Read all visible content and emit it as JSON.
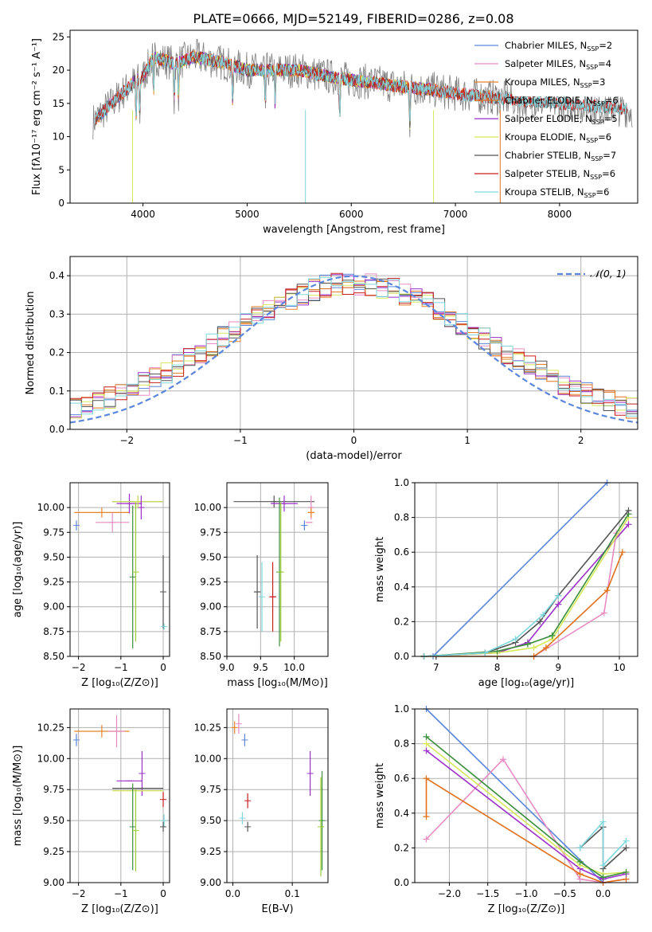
{
  "figure_title": "PLATE=0666, MJD=52149, FIBERID=0286, z=0.08",
  "colors": {
    "Chabrier MILES": "#5b86db",
    "Salpeter MILES": "#e88bc3",
    "Kroupa MILES": "#e8842a",
    "Chabrier ELODIE": "#e0701a",
    "Salpeter ELODIE": "#9b2fc9",
    "Kroupa ELODIE": "#d6e85a",
    "Chabrier STELIB": "#555555",
    "Salpeter STELIB": "#c81e1e",
    "Kroupa STELIB": "#7fd7dd",
    "gaussian": "#5b86db",
    "green_extra": "#3b8e3b",
    "olive_extra": "#9acd32",
    "grid": "#b0b0b0"
  },
  "chart_data": [
    {
      "type": "line",
      "title": "PLATE=0666, MJD=52149, FIBERID=0286, z=0.08",
      "xlabel": "wavelength [Angstrom, rest frame]",
      "ylabel": "Flux [fλ10⁻¹⁷ erg cm⁻² s⁻¹ A⁻¹]",
      "xlim": [
        3300,
        8750
      ],
      "ylim": [
        0,
        26
      ],
      "xticks": [
        "4000",
        "5000",
        "6000",
        "7000",
        "8000"
      ],
      "yticks": [
        "0",
        "5",
        "10",
        "15",
        "20",
        "25"
      ],
      "grid": false,
      "legend_position": "upper right",
      "legend": [
        {
          "name": "Chabrier MILES",
          "nssp": "2"
        },
        {
          "name": "Salpeter MILES",
          "nssp": "4"
        },
        {
          "name": "Kroupa MILES",
          "nssp": "3"
        },
        {
          "name": "Chabrier ELODIE",
          "nssp": "6"
        },
        {
          "name": "Salpeter ELODIE",
          "nssp": "5"
        },
        {
          "name": "Kroupa ELODIE",
          "nssp": "6"
        },
        {
          "name": "Chabrier STELIB",
          "nssp": "7"
        },
        {
          "name": "Salpeter STELIB",
          "nssp": "6"
        },
        {
          "name": "Kroupa STELIB",
          "nssp": "6"
        }
      ],
      "observed_continuum": {
        "x": [
          3500,
          3700,
          3900,
          4000,
          4100,
          4300,
          4500,
          4800,
          5000,
          5200,
          5500,
          5800,
          6000,
          6300,
          6500,
          6800,
          7000,
          7300,
          7600,
          8000,
          8400,
          8700
        ],
        "y": [
          12,
          15,
          18,
          19,
          22,
          21,
          22,
          21,
          20,
          20,
          20,
          19,
          18.5,
          18,
          17.5,
          17,
          16.5,
          16,
          15.5,
          15,
          14.5,
          14
        ]
      }
    },
    {
      "type": "bar",
      "subtype": "step-histogram",
      "xlabel": "(data-model)/error",
      "ylabel": "Normed distribution",
      "xlim": [
        -2.5,
        2.5
      ],
      "ylim": [
        0,
        0.45
      ],
      "xticks": [
        "−2",
        "−1",
        "0",
        "1",
        "2"
      ],
      "yticks": [
        "0.0",
        "0.1",
        "0.2",
        "0.3",
        "0.4"
      ],
      "grid": true,
      "legend_position": "upper right",
      "legend": [
        "𝒩(0, 1)"
      ],
      "reference_curve": "normal(0,1)"
    },
    {
      "type": "scatter",
      "subtype": "errorbar",
      "xlabel": "Z [log₁₀(Z/Z⊙)]",
      "ylabel": "age  [log₁₀(age/yr)]",
      "xlim": [
        -2.2,
        0.15
      ],
      "ylim": [
        8.5,
        10.25
      ],
      "xticks": [
        "−2",
        "−1",
        "0"
      ],
      "yticks": [
        "8.50",
        "8.75",
        "9.00",
        "9.25",
        "9.50",
        "9.75",
        "10.00"
      ],
      "grid": true,
      "points": [
        {
          "series": "Chabrier MILES",
          "x": -2.05,
          "y": 9.82,
          "xerr": 0,
          "yerr": 0.05
        },
        {
          "series": "Kroupa MILES",
          "x": -1.45,
          "y": 9.95,
          "xerr": 0.65,
          "yerr": 0.05
        },
        {
          "series": "Salpeter MILES",
          "x": -1.2,
          "y": 9.85,
          "xerr": 0.4,
          "yerr": 0.1
        },
        {
          "series": "Salpeter ELODIE",
          "x": -0.8,
          "y": 10.04,
          "xerr": 0.3,
          "yerr": 0.1
        },
        {
          "series": "Chabrier STELIB",
          "x": -0.6,
          "y": 10.06,
          "xerr": 0.6,
          "yerr": 0.06
        },
        {
          "series": "Kroupa ELODIE",
          "x": -0.6,
          "y": 10.06,
          "xerr": 0.6,
          "yerr": 0.06
        },
        {
          "series": "Salpeter ELODIE",
          "x": -0.52,
          "y": 10.0,
          "xerr": 0,
          "yerr": 0.12
        },
        {
          "series": "green_extra",
          "x": -0.72,
          "y": 9.3,
          "xerr": 0,
          "yerr": 0.72
        },
        {
          "series": "olive_extra",
          "x": -0.65,
          "y": 9.35,
          "xerr": 0,
          "yerr": 0.7
        },
        {
          "series": "Chabrier STELIB",
          "x": 0.0,
          "y": 9.15,
          "xerr": 0,
          "yerr": 0.37
        },
        {
          "series": "Kroupa STELIB",
          "x": 0.02,
          "y": 8.8,
          "xerr": 0,
          "yerr": 0.03
        }
      ]
    },
    {
      "type": "scatter",
      "subtype": "errorbar",
      "xlabel": "mass [log₁₀(M/M⊙)]",
      "ylabel": "",
      "xlim": [
        9.0,
        10.5
      ],
      "ylim": [
        8.5,
        10.25
      ],
      "xticks": [
        "9.0",
        "9.5",
        "10.0"
      ],
      "yticks": [
        "8.50",
        "8.75",
        "9.00",
        "9.25",
        "9.50",
        "9.75",
        "10.00"
      ],
      "grid": true,
      "points": [
        {
          "series": "Chabrier STELIB",
          "x": 9.7,
          "y": 10.06,
          "xerr": 0.6,
          "yerr": 0.06
        },
        {
          "series": "Salpeter ELODIE",
          "x": 9.85,
          "y": 10.04,
          "xerr": 0.2,
          "yerr": 0.08
        },
        {
          "series": "Salpeter MILES",
          "x": 10.25,
          "y": 10.0,
          "xerr": 0,
          "yerr": 0.12
        },
        {
          "series": "Kroupa MILES",
          "x": 10.25,
          "y": 9.95,
          "xerr": 0.05,
          "yerr": 0.05
        },
        {
          "series": "Chabrier MILES",
          "x": 10.15,
          "y": 9.82,
          "xerr": 0.02,
          "yerr": 0.05
        },
        {
          "series": "Salpeter MILES",
          "x": 10.22,
          "y": 9.85,
          "xerr": 0.05,
          "yerr": 0
        },
        {
          "series": "Chabrier STELIB",
          "x": 9.45,
          "y": 9.15,
          "xerr": 0.05,
          "yerr": 0.37
        },
        {
          "series": "Kroupa STELIB",
          "x": 9.52,
          "y": 9.1,
          "xerr": 0,
          "yerr": 0.35
        },
        {
          "series": "Salpeter STELIB",
          "x": 9.68,
          "y": 9.1,
          "xerr": 0.05,
          "yerr": 0.35
        },
        {
          "series": "green_extra",
          "x": 9.78,
          "y": 9.35,
          "xerr": 0,
          "yerr": 0.75
        },
        {
          "series": "olive_extra",
          "x": 9.8,
          "y": 9.35,
          "xerr": 0,
          "yerr": 0.7
        }
      ]
    },
    {
      "type": "line",
      "xlabel": "age  [log₁₀(age/yr)]",
      "ylabel": "mass weight",
      "xlim": [
        6.65,
        10.3
      ],
      "ylim": [
        0,
        1.0
      ],
      "xticks": [
        "7",
        "8",
        "9",
        "10"
      ],
      "yticks": [
        "0.0",
        "0.2",
        "0.4",
        "0.6",
        "0.8",
        "1.0"
      ],
      "grid": true,
      "series": [
        {
          "color_key": "Chabrier MILES",
          "x": [
            6.95,
            9.8
          ],
          "y": [
            0.0,
            1.0
          ]
        },
        {
          "color_key": "Salpeter MILES",
          "x": [
            8.6,
            9.75,
            9.95
          ],
          "y": [
            0.0,
            0.25,
            0.71
          ]
        },
        {
          "color_key": "Chabrier ELODIE",
          "x": [
            6.8,
            8.6,
            8.8,
            9.8,
            10.05
          ],
          "y": [
            0.0,
            0.0,
            0.05,
            0.38,
            0.6
          ]
        },
        {
          "color_key": "Salpeter ELODIE",
          "x": [
            6.8,
            8.0,
            8.5,
            9.0,
            10.15
          ],
          "y": [
            0.0,
            0.02,
            0.08,
            0.3,
            0.76
          ]
        },
        {
          "color_key": "Kroupa ELODIE",
          "x": [
            6.8,
            8.0,
            8.6,
            8.9,
            10.15
          ],
          "y": [
            0.0,
            0.02,
            0.05,
            0.1,
            0.8
          ]
        },
        {
          "color_key": "green_extra",
          "x": [
            6.8,
            8.0,
            8.5,
            8.9,
            10.15
          ],
          "y": [
            0.0,
            0.03,
            0.07,
            0.12,
            0.82
          ]
        },
        {
          "color_key": "Chabrier STELIB",
          "x": [
            6.8,
            7.8,
            8.3,
            8.7,
            9.0,
            10.15
          ],
          "y": [
            0.0,
            0.02,
            0.08,
            0.2,
            0.35,
            0.84
          ]
        },
        {
          "color_key": "Kroupa STELIB",
          "x": [
            6.8,
            7.8,
            8.3,
            8.75,
            9.0
          ],
          "y": [
            0.0,
            0.02,
            0.1,
            0.24,
            0.35
          ]
        }
      ]
    },
    {
      "type": "scatter",
      "subtype": "errorbar",
      "xlabel": "Z [log₁₀(Z/Z⊙)]",
      "ylabel": "mass [log₁₀(M/M⊙)]",
      "xlim": [
        -2.2,
        0.15
      ],
      "ylim": [
        9.0,
        10.4
      ],
      "xticks": [
        "−2",
        "−1",
        "0"
      ],
      "yticks": [
        "9.00",
        "9.25",
        "9.50",
        "9.75",
        "10.00",
        "10.25"
      ],
      "grid": true,
      "points": [
        {
          "series": "Chabrier MILES",
          "x": -2.05,
          "y": 10.15,
          "xerr": 0,
          "yerr": 0.05
        },
        {
          "series": "Kroupa MILES",
          "x": -1.45,
          "y": 10.22,
          "xerr": 0.65,
          "yerr": 0.05
        },
        {
          "series": "Salpeter MILES",
          "x": -1.1,
          "y": 10.22,
          "xerr": 0.2,
          "yerr": 0.13
        },
        {
          "series": "Salpeter ELODIE",
          "x": -0.8,
          "y": 9.82,
          "xerr": 0.3,
          "yerr": 0
        },
        {
          "series": "Salpeter ELODIE",
          "x": -0.5,
          "y": 9.88,
          "xerr": 0,
          "yerr": 0.18
        },
        {
          "series": "Chabrier STELIB",
          "x": -0.6,
          "y": 9.76,
          "xerr": 0.6,
          "yerr": 0
        },
        {
          "series": "Kroupa ELODIE",
          "x": -0.6,
          "y": 9.74,
          "xerr": 0.6,
          "yerr": 0
        },
        {
          "series": "green_extra",
          "x": -0.72,
          "y": 9.45,
          "xerr": 0,
          "yerr": 0.35
        },
        {
          "series": "olive_extra",
          "x": -0.65,
          "y": 9.42,
          "xerr": 0,
          "yerr": 0.33
        },
        {
          "series": "Salpeter STELIB",
          "x": 0.0,
          "y": 9.67,
          "xerr": 0,
          "yerr": 0.06
        },
        {
          "series": "Kroupa STELIB",
          "x": 0.02,
          "y": 9.5,
          "xerr": 0,
          "yerr": 0.05
        },
        {
          "series": "Chabrier STELIB",
          "x": 0.0,
          "y": 9.45,
          "xerr": 0,
          "yerr": 0.04
        }
      ]
    },
    {
      "type": "scatter",
      "subtype": "errorbar",
      "xlabel": "E(B-V)",
      "ylabel": "",
      "xlim": [
        -0.01,
        0.16
      ],
      "ylim": [
        9.0,
        10.4
      ],
      "xticks": [
        "0.0",
        "0.1"
      ],
      "yticks": [
        "9.00",
        "9.25",
        "9.50",
        "9.75",
        "10.00",
        "10.25"
      ],
      "grid": true,
      "points": [
        {
          "series": "Kroupa MILES",
          "x": 0.003,
          "y": 10.25,
          "yerr": 0.05
        },
        {
          "series": "Salpeter MILES",
          "x": 0.01,
          "y": 10.28,
          "yerr": 0.08
        },
        {
          "series": "Chabrier MILES",
          "x": 0.02,
          "y": 10.15,
          "yerr": 0.05
        },
        {
          "series": "Salpeter STELIB",
          "x": 0.025,
          "y": 9.66,
          "yerr": 0.06
        },
        {
          "series": "Kroupa STELIB",
          "x": 0.016,
          "y": 9.52,
          "yerr": 0.05
        },
        {
          "series": "Chabrier STELIB",
          "x": 0.025,
          "y": 9.45,
          "yerr": 0.04
        },
        {
          "series": "Salpeter ELODIE",
          "x": 0.13,
          "y": 9.88,
          "yerr": 0.18
        },
        {
          "series": "green_extra",
          "x": 0.15,
          "y": 9.5,
          "yerr": 0.4
        },
        {
          "series": "olive_extra",
          "x": 0.148,
          "y": 9.45,
          "yerr": 0.4
        }
      ]
    },
    {
      "type": "line",
      "xlabel": "Z [log₁₀(Z/Z⊙)]",
      "ylabel": "mass weight",
      "xlim": [
        -2.45,
        0.45
      ],
      "ylim": [
        0,
        1.0
      ],
      "xticks": [
        "−2.0",
        "−1.5",
        "−1.0",
        "−0.5",
        "0.0"
      ],
      "yticks": [
        "0.0",
        "0.2",
        "0.4",
        "0.6",
        "0.8",
        "1.0"
      ],
      "grid": true,
      "series": [
        {
          "color_key": "Chabrier MILES",
          "x": [
            -2.3,
            0.0
          ],
          "y": [
            1.0,
            0.0
          ]
        },
        {
          "color_key": "Salpeter MILES",
          "x": [
            -2.3,
            -1.3,
            -0.3,
            0.0,
            0.3
          ],
          "y": [
            0.25,
            0.71,
            0.02,
            0.0,
            0.02
          ]
        },
        {
          "color_key": "Chabrier ELODIE",
          "x": [
            -2.3,
            -2.3,
            -0.3,
            0.0,
            0.3
          ],
          "y": [
            0.38,
            0.6,
            0.05,
            0.0,
            0.02
          ]
        },
        {
          "color_key": "Salpeter ELODIE",
          "x": [
            -2.3,
            -0.3,
            0.0,
            0.3
          ],
          "y": [
            0.76,
            0.08,
            0.02,
            0.05
          ]
        },
        {
          "color_key": "Kroupa ELODIE",
          "x": [
            -2.3,
            -0.3,
            0.0,
            0.3
          ],
          "y": [
            0.8,
            0.1,
            0.05,
            0.06
          ]
        },
        {
          "color_key": "green_extra",
          "x": [
            -2.3,
            -0.3,
            0.0,
            0.3
          ],
          "y": [
            0.84,
            0.12,
            0.03,
            0.06
          ]
        },
        {
          "color_key": "Chabrier STELIB",
          "x": [
            -0.3,
            0.0,
            0.0,
            0.3
          ],
          "y": [
            0.2,
            0.32,
            0.08,
            0.2
          ]
        },
        {
          "color_key": "Kroupa STELIB",
          "x": [
            -0.3,
            0.0,
            0.0,
            0.3
          ],
          "y": [
            0.2,
            0.35,
            0.1,
            0.24
          ]
        }
      ]
    }
  ]
}
